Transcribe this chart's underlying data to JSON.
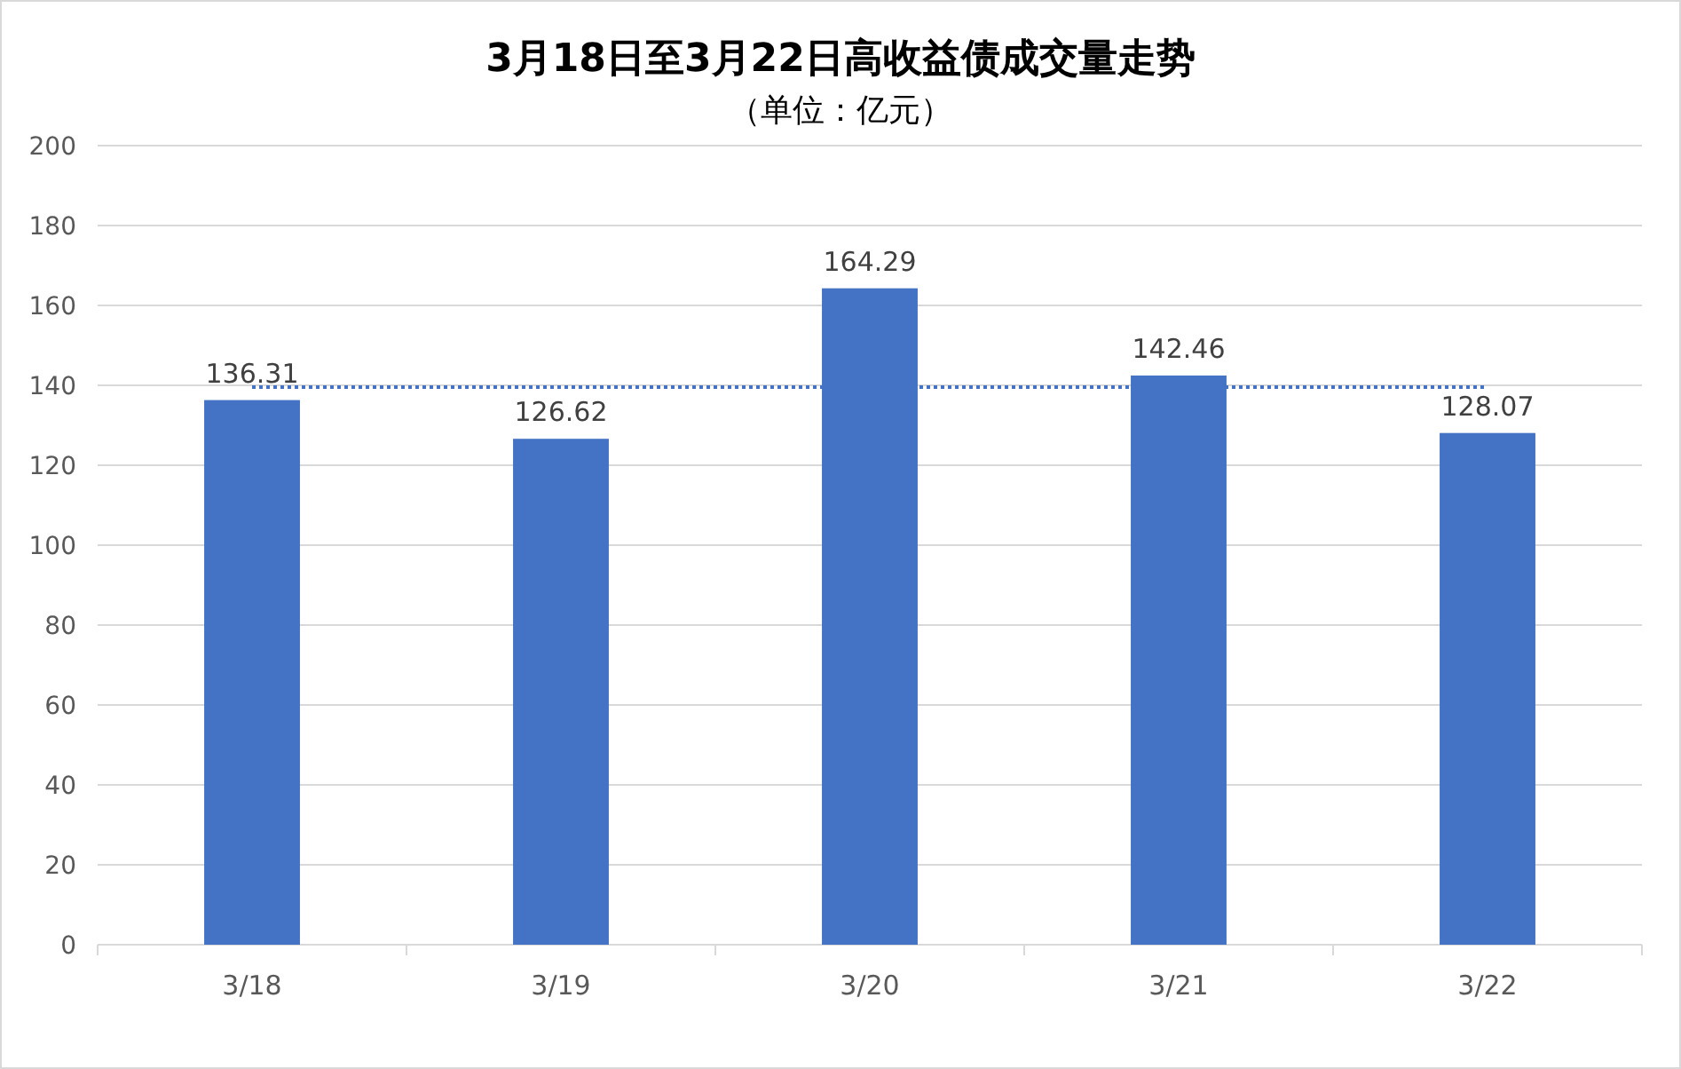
{
  "chart_data": {
    "type": "bar",
    "title": "3月18日至3月22日高收益债成交量走势",
    "subtitle": "（单位：亿元）",
    "categories": [
      "3/18",
      "3/19",
      "3/20",
      "3/21",
      "3/22"
    ],
    "values": [
      136.31,
      126.62,
      164.29,
      142.46,
      128.07
    ],
    "color": "#4472c4",
    "data_labels": true,
    "ylim": [
      0,
      200
    ],
    "yticks": [
      0,
      20,
      40,
      60,
      80,
      100,
      120,
      140,
      160,
      180,
      200
    ],
    "grid": "y",
    "ref_lines": [
      {
        "axis": "y",
        "value": 139.55,
        "color": "#4472c4",
        "line_style": "dotted"
      }
    ]
  }
}
